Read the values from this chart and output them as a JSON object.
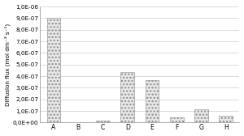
{
  "categories": [
    "A",
    "B",
    "C",
    "D",
    "E",
    "F",
    "G",
    "H"
  ],
  "values": [
    9e-07,
    8e-10,
    1.8e-08,
    4.35e-07,
    3.65e-07,
    4.5e-08,
    1.15e-07,
    5.5e-08
  ],
  "ylim": [
    0,
    1e-06
  ],
  "yticks": [
    0,
    1e-07,
    2e-07,
    3e-07,
    4e-07,
    5e-07,
    6e-07,
    7e-07,
    8e-07,
    9e-07,
    1e-06
  ],
  "ytick_labels": [
    "0,0E+00",
    "1,0E-07",
    "2,0E-07",
    "3,0E-07",
    "4,0E-07",
    "5,0E-07",
    "6,0E-07",
    "7,0E-07",
    "8,0E-07",
    "9,0E-07",
    "1,0E-06"
  ],
  "ylabel": "Diffusion flux (mol dm⁻³ s⁻¹)",
  "bar_facecolor": "#e8e8e8",
  "bar_edgecolor": "#888888",
  "hatch": "....",
  "background_color": "#ffffff",
  "grid_color": "#cccccc",
  "bar_width": 0.55
}
